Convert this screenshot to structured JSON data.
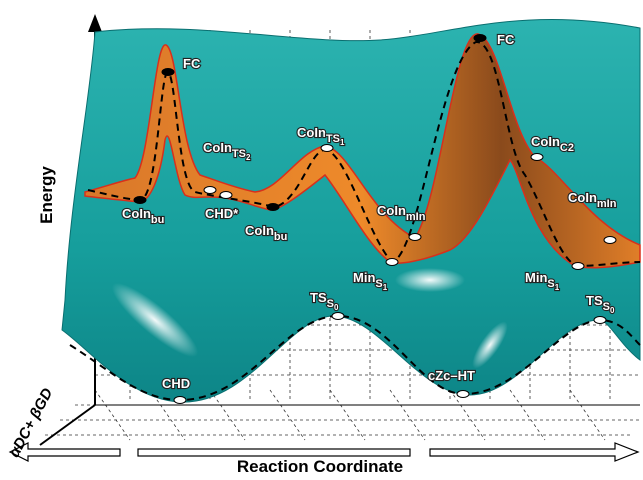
{
  "axes": {
    "y_label": "Energy",
    "x_label": "Reaction Coordinate",
    "z_label": "αDC+ βGD"
  },
  "points": [
    {
      "text": "FC"
    },
    {
      "text": "FC"
    },
    {
      "text": "CoIn",
      "sub": "TS",
      "subsub": "2"
    },
    {
      "text": "CoIn",
      "sub": "TS",
      "subsub": "1"
    },
    {
      "text": "CoIn",
      "sub": "C2"
    },
    {
      "text": "CoIn",
      "sub": "bu"
    },
    {
      "text": "CHD*"
    },
    {
      "text": "CoIn",
      "sub": "bu"
    },
    {
      "text": "CoIn",
      "sub": "mIn"
    },
    {
      "text": "CoIn",
      "sub": "mIn"
    },
    {
      "text": "Min",
      "sub": "S",
      "subsub": "1"
    },
    {
      "text": "Min",
      "sub": "S",
      "subsub": "1"
    },
    {
      "text": "TS",
      "sub": "S",
      "subsub": "0"
    },
    {
      "text": "TS",
      "sub": "S",
      "subsub": "0"
    },
    {
      "text": "CHD"
    },
    {
      "text": "cZc–HT"
    }
  ]
}
